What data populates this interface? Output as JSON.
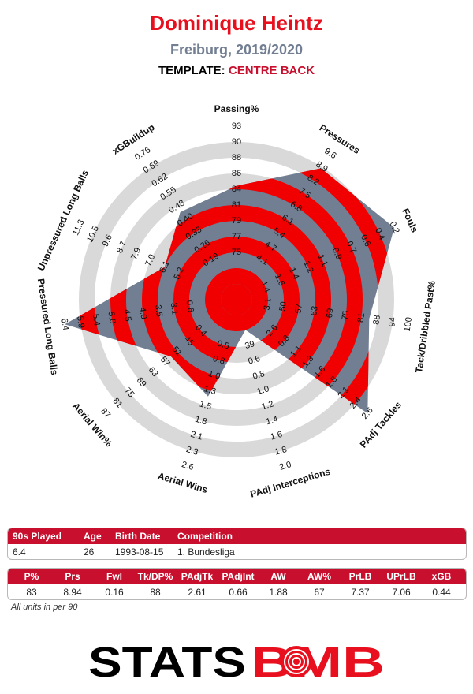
{
  "header": {
    "player": "Dominique Heintz",
    "team_season": "Freiburg, 2019/2020",
    "template_label": "TEMPLATE:",
    "template_value": "CENTRE BACK"
  },
  "chart_data": {
    "type": "radar",
    "axes": [
      {
        "label": "Passing%",
        "ticks": [
          "75",
          "77",
          "79",
          "81",
          "84",
          "86",
          "88",
          "90",
          "93"
        ],
        "value": 83,
        "fraction": 0.622
      },
      {
        "label": "Pressures",
        "ticks": [
          "4.1",
          "4.7",
          "5.4",
          "6.1",
          "6.8",
          "7.5",
          "8.2",
          "8.9",
          "9.6"
        ],
        "value": 8.94,
        "fraction": 0.89
      },
      {
        "label": "Fouls",
        "ticks": [
          "1.6",
          "1.4",
          "1.2",
          "1.1",
          "0.9",
          "0.7",
          "0.6",
          "0.4",
          "0.2"
        ],
        "value": 0.16,
        "fraction": 1.0
      },
      {
        "label": "Tack/Dribbled Past%",
        "ticks": [
          "50",
          "57",
          "63",
          "69",
          "75",
          "81",
          "88",
          "94",
          "100"
        ],
        "value": 88,
        "fraction": 0.75
      },
      {
        "label": "PAdj Tackles",
        "ticks": [
          "0.8",
          "1.1",
          "1.3",
          "1.6",
          "1.8",
          "2.1",
          "2.4",
          "2.6"
        ],
        "value": 2.61,
        "fraction": 1.0
      },
      {
        "label": "PAdj Interceptions",
        "ticks": [
          "0.6",
          "0.8",
          "1.0",
          "1.2",
          "1.4",
          "1.6",
          "1.8",
          "2.0"
        ],
        "value": 0.66,
        "fraction": 0.1
      },
      {
        "label": "Aerial Wins",
        "ticks": [
          "0.8",
          "1.0",
          "1.3",
          "1.5",
          "1.8",
          "2.1",
          "2.3",
          "2.6"
        ],
        "value": 1.88,
        "fraction": 0.54
      },
      {
        "label": "Aerial Win%",
        "ticks": [
          "45",
          "51",
          "57",
          "63",
          "69",
          "75",
          "81",
          "87"
        ],
        "value": 67,
        "fraction": 0.45
      },
      {
        "label": "Pressured Long Balls",
        "ticks": [
          "3.1",
          "3.5",
          "4.0",
          "4.5",
          "5.0",
          "5.4",
          "5.9",
          "6.4"
        ],
        "value": 7.37,
        "fraction": 1.0
      },
      {
        "label": "Unpressured Long Balls",
        "ticks": [
          "5.2",
          "6.1",
          "7.0",
          "7.9",
          "8.7",
          "9.6",
          "10.5",
          "11.3"
        ],
        "value": 7.06,
        "fraction": 0.4
      },
      {
        "label": "xGBuildup",
        "ticks": [
          "0.19",
          "0.26",
          "0.33",
          "0.40",
          "0.48",
          "0.55",
          "0.62",
          "0.69",
          "0.76"
        ],
        "value": 0.44,
        "fraction": 0.56
      }
    ],
    "inner_ticks": [
      {
        "axis": 2,
        "values": [
          "4.4"
        ]
      },
      {
        "axis": 3,
        "values": [
          "3.1"
        ]
      },
      {
        "axis": 4,
        "values": [
          "2.6"
        ]
      },
      {
        "axis": 5,
        "values": [
          "39"
        ]
      },
      {
        "axis": 6,
        "values": [
          "0.5"
        ]
      },
      {
        "axis": 7,
        "values": [
          "0.4"
        ]
      },
      {
        "axis": 8,
        "values": [
          "0.6"
        ]
      }
    ],
    "colors": {
      "ring_red": "#f00000",
      "ring_grey": "#d9d9d9",
      "shape": "#727e92"
    }
  },
  "info_table": {
    "headers": [
      "90s Played",
      "Age",
      "Birth Date",
      "Competition"
    ],
    "values": [
      "6.4",
      "26",
      "1993-08-15",
      "1. Bundesliga"
    ]
  },
  "stats_table": {
    "headers": [
      "P%",
      "Prs",
      "Fwl",
      "Tk/DP%",
      "PAdjTk",
      "PAdjInt",
      "AW",
      "AW%",
      "PrLB",
      "UPrLB",
      "xGB"
    ],
    "values": [
      "83",
      "8.94",
      "0.16",
      "88",
      "2.61",
      "0.66",
      "1.88",
      "67",
      "7.37",
      "7.06",
      "0.44"
    ]
  },
  "footnote": "All units in per 90",
  "logo": {
    "left": "STATS",
    "right": "BMB"
  }
}
